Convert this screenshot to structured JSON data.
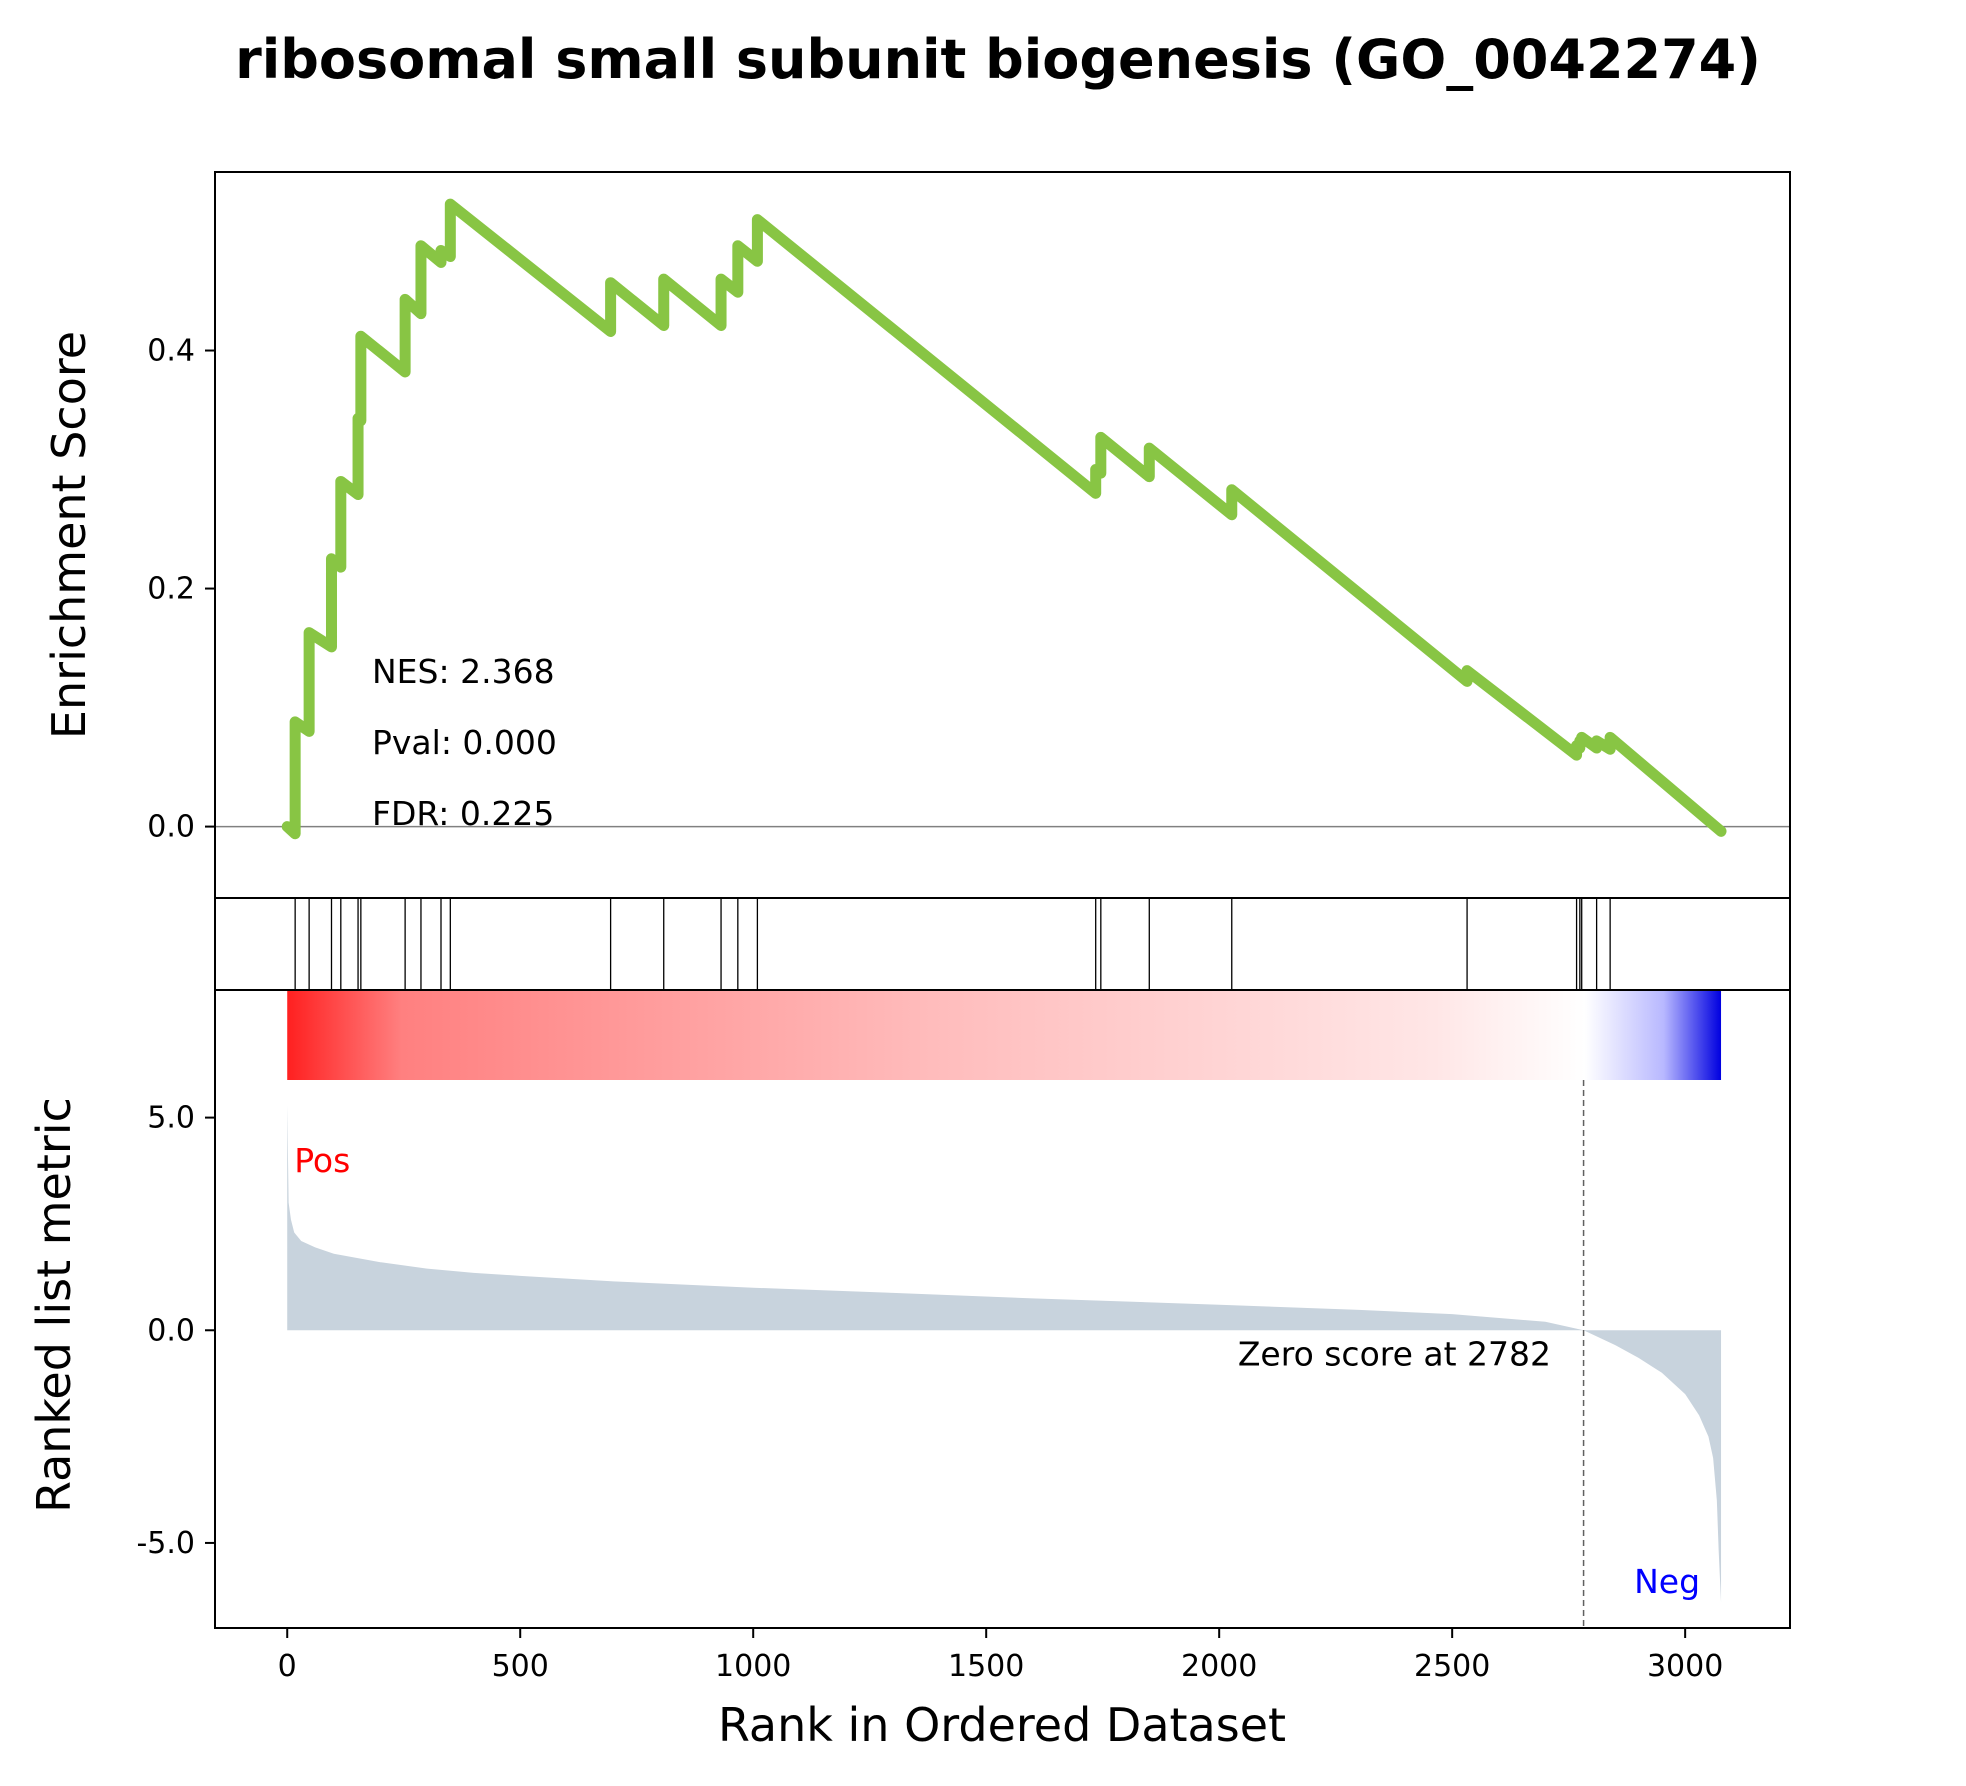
{
  "chart_data": {
    "type": "line",
    "title": "ribosomal small subunit biogenesis (GO_0042274)",
    "xlabel": "Rank in Ordered Dataset",
    "es_ylabel": "Enrichment Score",
    "metric_ylabel": "Ranked list metric",
    "x_ticks": [
      0,
      500,
      1000,
      1500,
      2000,
      2500,
      3000
    ],
    "xlim": [
      -155,
      3225
    ],
    "es_ylim": [
      -0.06,
      0.55
    ],
    "es_ticks": [
      0.0,
      0.2,
      0.4
    ],
    "es_tick_labels": [
      "0.0",
      "0.2",
      "0.4"
    ],
    "metric_ylim": [
      -7.0,
      8.0
    ],
    "metric_ticks": [
      5.0,
      0.0,
      -5.0
    ],
    "metric_tick_labels": [
      "5.0",
      "0.0",
      "-5.0"
    ],
    "stats": {
      "nes": "NES: 2.368",
      "pval": "Pval: 0.000",
      "fdr": "FDR: 0.225"
    },
    "annotations": {
      "pos_label": "Pos",
      "neg_label": "Neg",
      "zero_score": "Zero score at 2782"
    },
    "n_genes": 3077,
    "zero_cross_rank": 2782,
    "hits": [
      17,
      47,
      95,
      115,
      152,
      158,
      253,
      287,
      330,
      350,
      694,
      808,
      931,
      967,
      1009,
      1735,
      1746,
      1850,
      2027,
      2532,
      2767,
      2774,
      2778,
      2810,
      2839
    ],
    "enrichment_curve": {
      "x": [
        0,
        17,
        17,
        47,
        47,
        95,
        95,
        115,
        115,
        152,
        152,
        158,
        158,
        253,
        253,
        287,
        287,
        330,
        330,
        350,
        350,
        694,
        694,
        808,
        808,
        931,
        931,
        967,
        967,
        1009,
        1009,
        1735,
        1735,
        1746,
        1746,
        1850,
        1850,
        2027,
        2027,
        2532,
        2532,
        2767,
        2767,
        2774,
        2774,
        2778,
        2778,
        2810,
        2810,
        2839,
        2839,
        3077
      ],
      "y": [
        0.0,
        -0.006,
        0.088,
        0.08,
        0.163,
        0.151,
        0.225,
        0.218,
        0.29,
        0.279,
        0.343,
        0.341,
        0.412,
        0.382,
        0.443,
        0.431,
        0.488,
        0.474,
        0.484,
        0.479,
        0.523,
        0.416,
        0.457,
        0.421,
        0.46,
        0.421,
        0.46,
        0.449,
        0.488,
        0.475,
        0.51,
        0.28,
        0.3,
        0.297,
        0.327,
        0.294,
        0.318,
        0.262,
        0.283,
        0.122,
        0.131,
        0.06,
        0.068,
        0.066,
        0.072,
        0.071,
        0.075,
        0.066,
        0.072,
        0.065,
        0.075,
        -0.004
      ]
    },
    "metric_profile": {
      "rank": [
        0,
        3,
        8,
        15,
        30,
        60,
        100,
        150,
        200,
        300,
        400,
        500,
        700,
        1000,
        1300,
        1600,
        2000,
        2300,
        2500,
        2700,
        2782,
        2850,
        2900,
        2950,
        3000,
        3030,
        3050,
        3060,
        3068,
        3072,
        3077
      ],
      "value": [
        5.3,
        3.0,
        2.6,
        2.3,
        2.1,
        1.95,
        1.8,
        1.7,
        1.6,
        1.45,
        1.35,
        1.28,
        1.15,
        1.0,
        0.88,
        0.75,
        0.6,
        0.48,
        0.38,
        0.2,
        0.0,
        -0.35,
        -0.65,
        -1.0,
        -1.5,
        -2.0,
        -2.5,
        -3.0,
        -4.0,
        -5.2,
        -6.4
      ]
    },
    "colors": {
      "es_line": "#88c544",
      "hit_line": "#000000",
      "metric_fill": "#c8d3dd",
      "zero_line": "#808080",
      "pos_text": "#ff0000",
      "neg_text": "#0000ff",
      "gradient_stops": [
        "#ff2020",
        "#ff8080",
        "#ffbcbc",
        "#ffe6e6",
        "#ffffff",
        "#b8b8ff",
        "#0000e0"
      ],
      "gradient_offsets": [
        0.0,
        0.08,
        0.45,
        0.8,
        0.905,
        0.96,
        1.0
      ]
    }
  }
}
